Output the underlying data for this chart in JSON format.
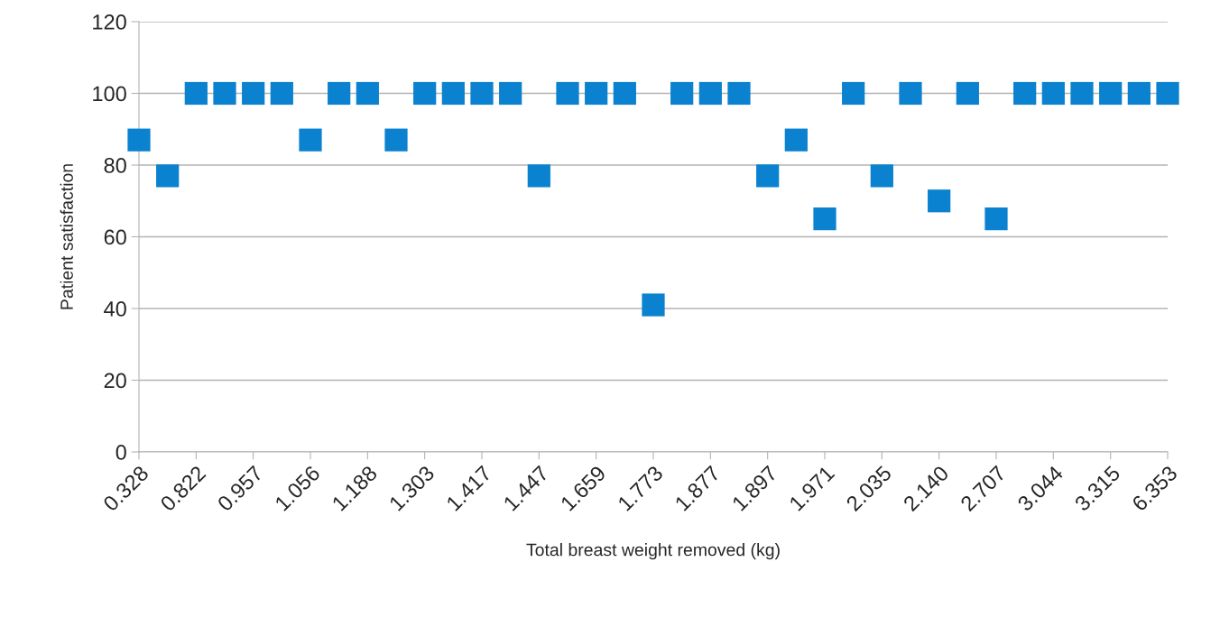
{
  "chart_data": {
    "type": "scatter",
    "xlabel": "Total breast weight removed (kg)",
    "ylabel": "Patient satisfaction",
    "categories": [
      "0.328",
      null,
      "0.822",
      null,
      "0.957",
      null,
      "1.056",
      null,
      "1.188",
      null,
      "1.303",
      null,
      "1.417",
      null,
      "1.447",
      null,
      "1.659",
      null,
      "1.773",
      null,
      "1.877",
      null,
      "1.897",
      null,
      "1.971",
      null,
      "2.035",
      null,
      "2.140",
      null,
      "2.707",
      null,
      "3.044",
      null,
      "3.315",
      null,
      "6.353"
    ],
    "series": [
      {
        "color": "#0a82cf",
        "values": [
          87,
          77,
          100,
          100,
          100,
          100,
          87,
          100,
          100,
          87,
          100,
          100,
          100,
          100,
          77,
          100,
          100,
          100,
          41,
          100,
          100,
          100,
          77,
          87,
          65,
          100,
          77,
          100,
          70,
          100,
          65,
          100,
          100,
          100,
          100,
          100,
          100
        ]
      }
    ],
    "ylim": [
      0,
      120
    ],
    "yticks": [
      0,
      20,
      40,
      60,
      80,
      100,
      120
    ],
    "grid": "y",
    "marker": "square",
    "legend": false
  }
}
